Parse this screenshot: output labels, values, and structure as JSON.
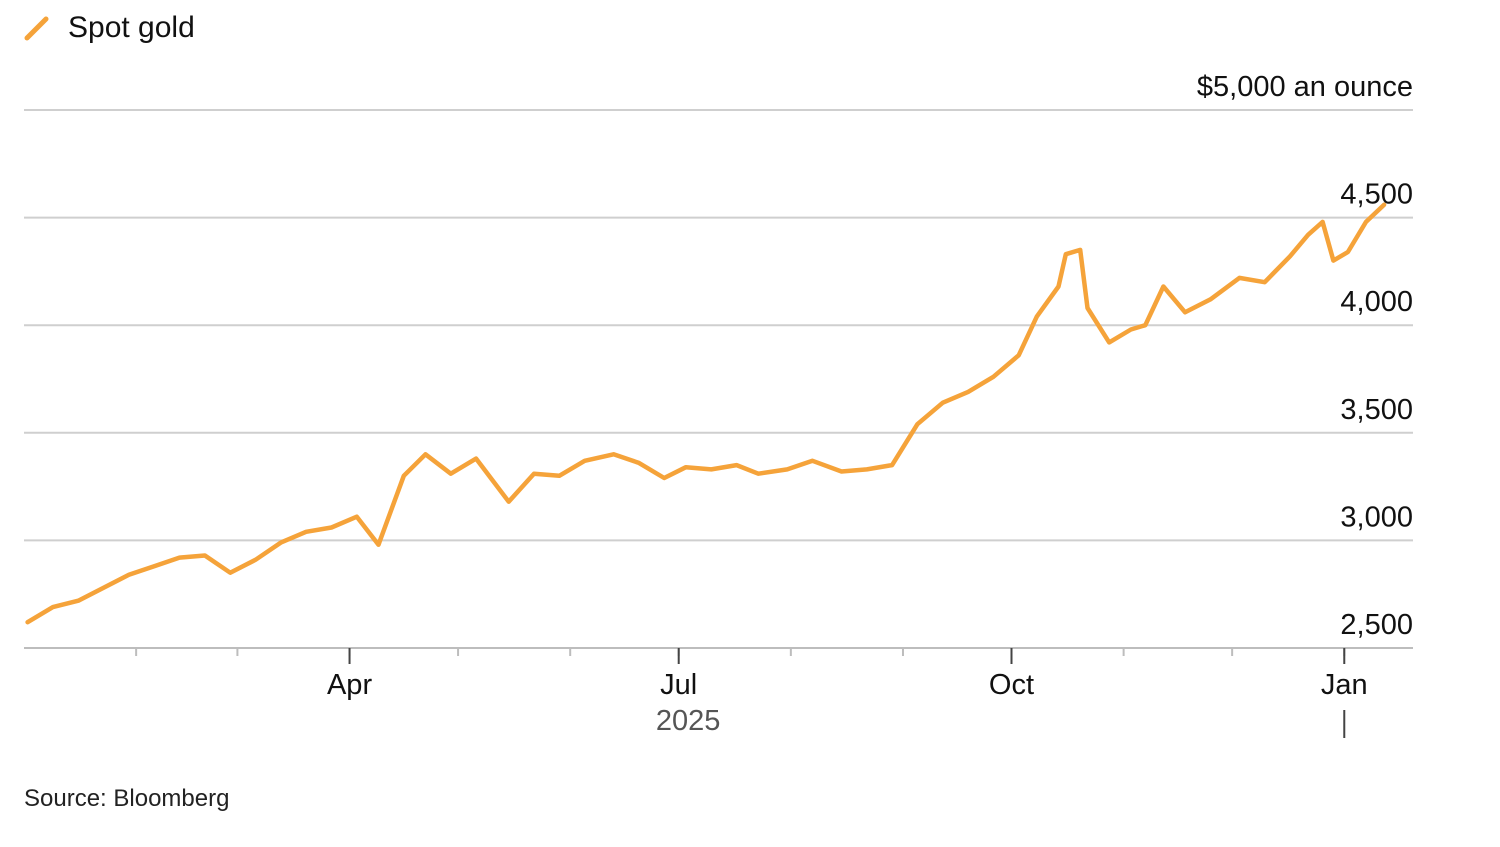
{
  "colors": {
    "line": "#F5A33A",
    "grid": "#cfcfcf",
    "axis": "#bdbdbd",
    "text": "#111111",
    "year": "#555555"
  },
  "source": "Source: Bloomberg",
  "chart_data": {
    "type": "line",
    "series": [
      {
        "name": "Spot gold",
        "x": [
          "2025-01-02",
          "2025-01-09",
          "2025-01-16",
          "2025-01-23",
          "2025-01-30",
          "2025-02-06",
          "2025-02-13",
          "2025-02-20",
          "2025-02-27",
          "2025-03-06",
          "2025-03-13",
          "2025-03-20",
          "2025-03-27",
          "2025-04-03",
          "2025-04-09",
          "2025-04-16",
          "2025-04-22",
          "2025-04-29",
          "2025-05-06",
          "2025-05-15",
          "2025-05-22",
          "2025-05-29",
          "2025-06-05",
          "2025-06-13",
          "2025-06-20",
          "2025-06-27",
          "2025-07-03",
          "2025-07-10",
          "2025-07-17",
          "2025-07-23",
          "2025-07-31",
          "2025-08-07",
          "2025-08-15",
          "2025-08-22",
          "2025-08-29",
          "2025-09-05",
          "2025-09-12",
          "2025-09-19",
          "2025-09-26",
          "2025-10-03",
          "2025-10-08",
          "2025-10-14",
          "2025-10-16",
          "2025-10-20",
          "2025-10-22",
          "2025-10-28",
          "2025-11-03",
          "2025-11-07",
          "2025-11-12",
          "2025-11-18",
          "2025-11-25",
          "2025-12-03",
          "2025-12-10",
          "2025-12-17",
          "2025-12-22",
          "2025-12-26",
          "2025-12-29",
          "2026-01-02",
          "2026-01-07",
          "2026-01-12"
        ],
        "y": [
          2620,
          2690,
          2720,
          2780,
          2840,
          2880,
          2920,
          2930,
          2850,
          2910,
          2990,
          3040,
          3060,
          3110,
          2980,
          3300,
          3400,
          3310,
          3380,
          3180,
          3310,
          3300,
          3370,
          3400,
          3360,
          3290,
          3340,
          3330,
          3350,
          3310,
          3330,
          3370,
          3320,
          3330,
          3350,
          3540,
          3640,
          3690,
          3760,
          3860,
          4040,
          4180,
          4330,
          4350,
          4080,
          3920,
          3980,
          4000,
          4180,
          4060,
          4120,
          4220,
          4200,
          4320,
          4420,
          4480,
          4300,
          4340,
          4480,
          4560
        ]
      }
    ],
    "ylabel": "$5,000 an ounce",
    "ylim": [
      2500,
      5000
    ],
    "yticks": [
      2500,
      3000,
      3500,
      4000,
      4500
    ],
    "ytick_labels": [
      "2,500",
      "3,000",
      "3,500",
      "4,000",
      "4,500"
    ],
    "xlim": [
      "2025-01-01",
      "2026-01-20"
    ],
    "month_ticks": [
      "2025-02-01",
      "2025-03-01",
      "2025-04-01",
      "2025-05-01",
      "2025-06-01",
      "2025-07-01",
      "2025-08-01",
      "2025-09-01",
      "2025-10-01",
      "2025-11-01",
      "2025-12-01",
      "2026-01-01"
    ],
    "xticks": [
      {
        "date": "2025-04-01",
        "label": "Apr"
      },
      {
        "date": "2025-07-01",
        "label": "Jul"
      },
      {
        "date": "2025-10-01",
        "label": "Oct"
      },
      {
        "date": "2026-01-01",
        "label": "Jan"
      }
    ],
    "year_label": "2025",
    "year_divider": "2026-01-01",
    "grid": true,
    "legend": "top-left"
  }
}
